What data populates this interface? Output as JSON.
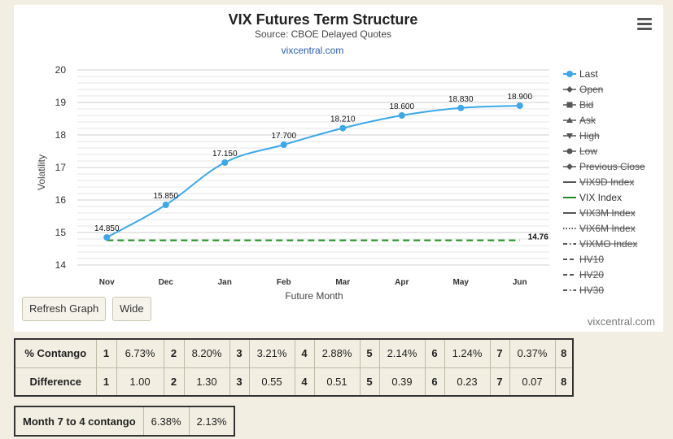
{
  "chart_data": {
    "type": "line",
    "title": "VIX Futures Term Structure",
    "subtitle": "Source: CBOE Delayed Quotes",
    "source_link": "vixcentral.com",
    "xlabel": "Future Month",
    "ylabel": "Volatility",
    "categories": [
      "Nov",
      "Dec",
      "Jan",
      "Feb",
      "Mar",
      "Apr",
      "May",
      "Jun"
    ],
    "ylim": [
      14,
      20
    ],
    "yticks": [
      "14",
      "15",
      "16",
      "17",
      "18",
      "19",
      "20"
    ],
    "grid": true,
    "legend_position": "right",
    "series": [
      {
        "name": "Last",
        "values": [
          14.85,
          15.85,
          17.15,
          17.7,
          18.21,
          18.6,
          18.83,
          18.9
        ],
        "labels": [
          "14.850",
          "15.850",
          "17.150",
          "17.700",
          "18.210",
          "18.600",
          "18.830",
          "18.900"
        ],
        "color": "#3aa8ea"
      },
      {
        "name": "VIX Index",
        "value": 14.76,
        "label": "14.76",
        "color": "#1e8f1e"
      }
    ],
    "legend": [
      {
        "name": "Last",
        "active": true,
        "symbol": "circle",
        "color": "#3aa8ea"
      },
      {
        "name": "Open",
        "active": false,
        "symbol": "diamond"
      },
      {
        "name": "Bid",
        "active": false,
        "symbol": "square"
      },
      {
        "name": "Ask",
        "active": false,
        "symbol": "triangle"
      },
      {
        "name": "High",
        "active": false,
        "symbol": "triangle-down"
      },
      {
        "name": "Low",
        "active": false,
        "symbol": "circle"
      },
      {
        "name": "Previous Close",
        "active": false,
        "symbol": "diamond"
      },
      {
        "name": "VIX9D Index",
        "active": false,
        "symbol": "solid"
      },
      {
        "name": "VIX Index",
        "active": true,
        "symbol": "solid",
        "color": "#1e8f1e"
      },
      {
        "name": "VIX3M Index",
        "active": false,
        "symbol": "solid"
      },
      {
        "name": "VIX6M Index",
        "active": false,
        "symbol": "dotted"
      },
      {
        "name": "VIXMO Index",
        "active": false,
        "symbol": "dashdot"
      },
      {
        "name": "HV10",
        "active": false,
        "symbol": "dashed"
      },
      {
        "name": "HV20",
        "active": false,
        "symbol": "dashed"
      },
      {
        "name": "HV30",
        "active": false,
        "symbol": "dashdot"
      }
    ],
    "credit": "vixcentral.com"
  },
  "buttons": {
    "refresh": "Refresh Graph",
    "wide": "Wide"
  },
  "contango_table": {
    "rows": [
      {
        "label": "% Contango",
        "cells": [
          [
            "1",
            "6.73%"
          ],
          [
            "2",
            "8.20%"
          ],
          [
            "3",
            "3.21%"
          ],
          [
            "4",
            "2.88%"
          ],
          [
            "5",
            "2.14%"
          ],
          [
            "6",
            "1.24%"
          ],
          [
            "7",
            "0.37%"
          ],
          [
            "8",
            ""
          ]
        ]
      },
      {
        "label": "Difference",
        "cells": [
          [
            "1",
            "1.00"
          ],
          [
            "2",
            "1.30"
          ],
          [
            "3",
            "0.55"
          ],
          [
            "4",
            "0.51"
          ],
          [
            "5",
            "0.39"
          ],
          [
            "6",
            "0.23"
          ],
          [
            "7",
            "0.07"
          ],
          [
            "8",
            ""
          ]
        ]
      }
    ]
  },
  "summary": {
    "label": "Month 7 to 4 contango",
    "value1": "6.38%",
    "value2": "2.13%"
  }
}
